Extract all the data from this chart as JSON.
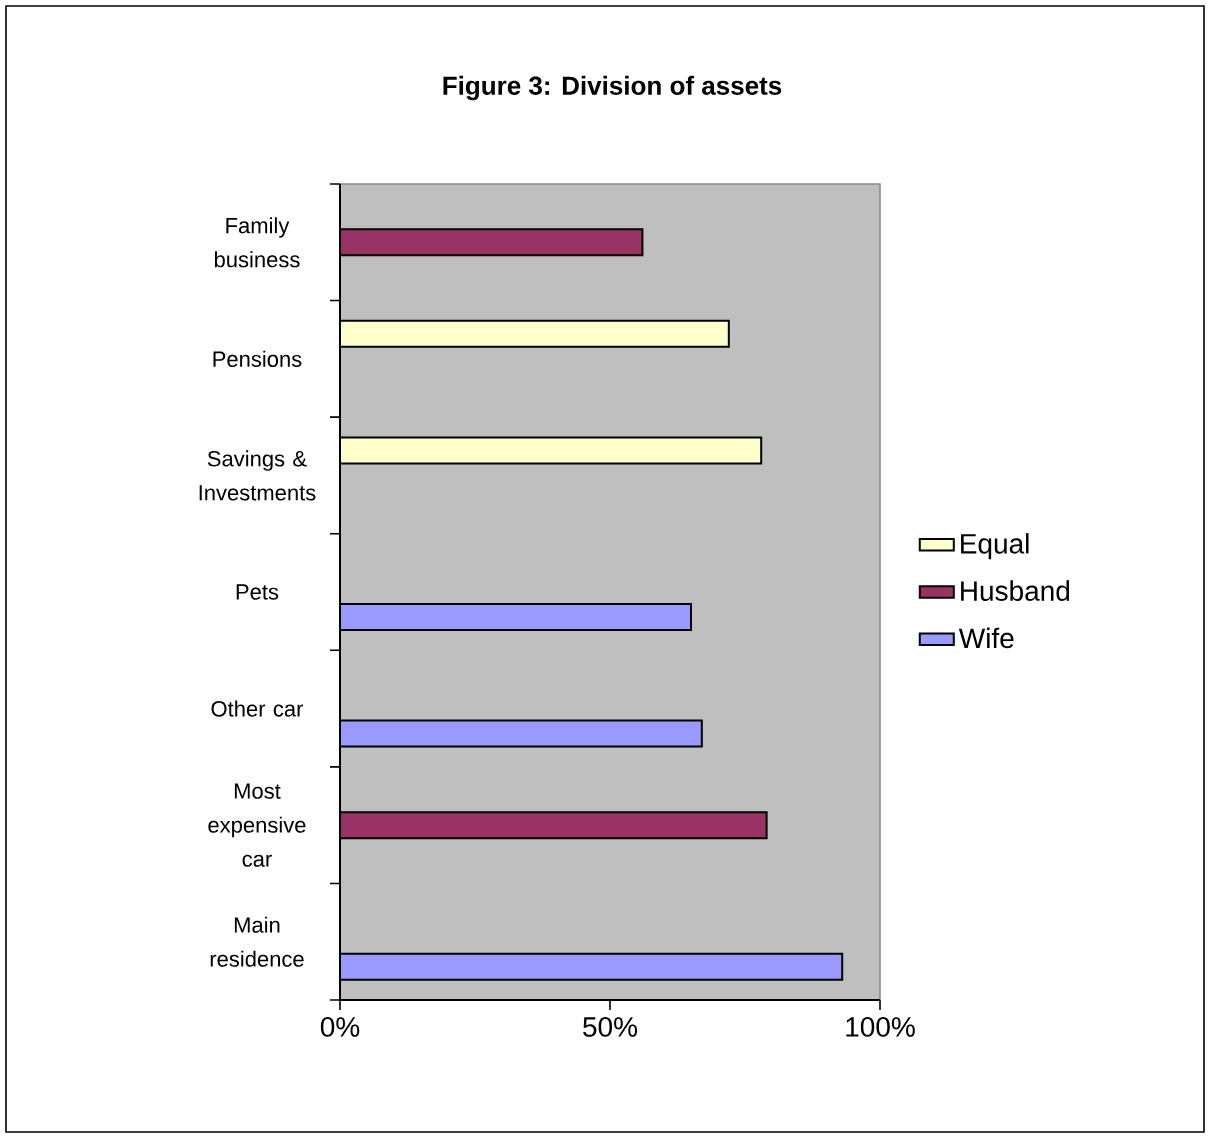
{
  "chart_data": {
    "type": "bar",
    "orientation": "horizontal",
    "title": "Figure 3: Division of assets",
    "categories": [
      "Family business",
      "Pensions",
      "Savings & Investments",
      "Pets",
      "Other car",
      "Most expensive car",
      "Main residence"
    ],
    "series": [
      {
        "name": "Equal",
        "color": "#ffffcc",
        "values": [
          null,
          72,
          78,
          null,
          null,
          null,
          null
        ]
      },
      {
        "name": "Husband",
        "color": "#993366",
        "values": [
          56,
          null,
          null,
          null,
          null,
          79,
          null
        ]
      },
      {
        "name": "Wife",
        "color": "#9999ff",
        "values": [
          null,
          null,
          null,
          65,
          67,
          null,
          93
        ]
      }
    ],
    "xlim": [
      0,
      100
    ],
    "xticks": [
      {
        "value": 0,
        "label": "0%"
      },
      {
        "value": 50,
        "label": "50%"
      },
      {
        "value": 100,
        "label": "100%"
      }
    ],
    "legend": "right"
  }
}
